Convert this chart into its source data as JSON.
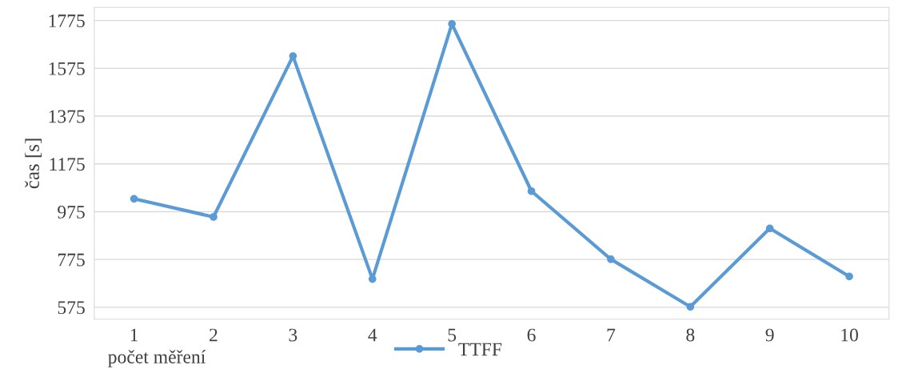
{
  "chart_data": {
    "type": "line",
    "xlabel": "počet měření",
    "ylabel": "čas [s]",
    "categories": [
      "1",
      "2",
      "3",
      "4",
      "5",
      "6",
      "7",
      "8",
      "9",
      "10"
    ],
    "series": [
      {
        "name": "TTFF",
        "color": "#5b9bd5",
        "values": [
          1029,
          953,
          1626,
          693,
          1761,
          1061,
          776,
          577,
          905,
          704
        ]
      }
    ],
    "ylim": [
      525,
      1830
    ],
    "yticks": [
      575,
      775,
      975,
      1175,
      1375,
      1575,
      1775
    ],
    "grid": "y",
    "legend": "bottom",
    "marker": "circle",
    "line_style": "solid"
  }
}
